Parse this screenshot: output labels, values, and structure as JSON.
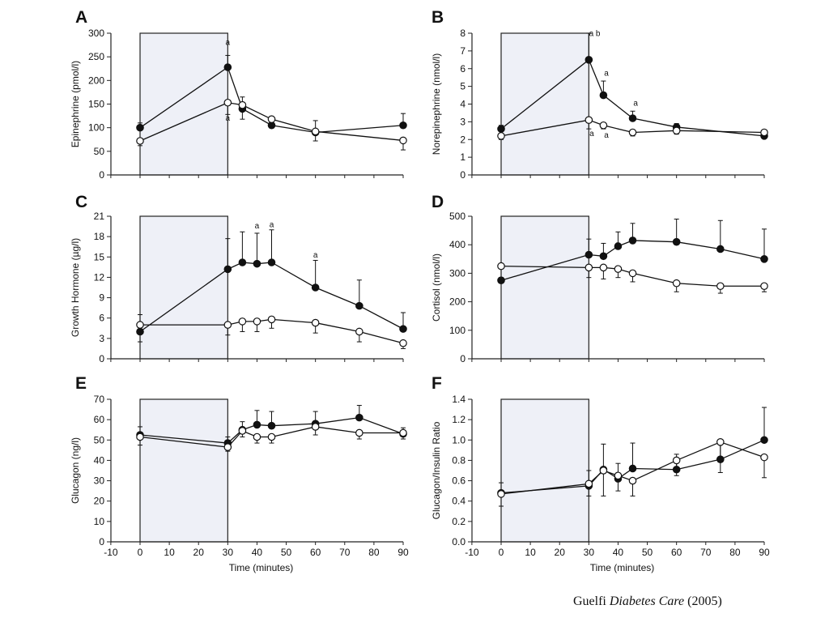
{
  "citation": {
    "author": "Guelfi",
    "journal": "Diabetes Care",
    "year": "(2005)"
  },
  "colors": {
    "shade": "#eef0f7",
    "ink": "#111111",
    "open_fill": "#ffffff"
  },
  "chart_data": [
    {
      "letter": "A",
      "type": "line",
      "title": "",
      "ylabel": "Epinephrine (pmol/l)",
      "xlabel": "",
      "ylim": [
        0,
        300
      ],
      "yticks": [
        0,
        50,
        100,
        150,
        200,
        250,
        300
      ],
      "xlim": [
        0,
        90
      ],
      "xticks": [],
      "shaded_interval": [
        0,
        30
      ],
      "series": [
        {
          "marker": "filled",
          "x": [
            0,
            30,
            35,
            45,
            60,
            90
          ],
          "y": [
            100,
            228,
            140,
            105,
            90,
            105
          ],
          "err": [
            10,
            25,
            25,
            10,
            25,
            25
          ]
        },
        {
          "marker": "open",
          "x": [
            0,
            30,
            35,
            45,
            60,
            90
          ],
          "y": [
            72,
            153,
            148,
            118,
            92,
            73
          ],
          "err": [
            10,
            25,
            30,
            15,
            20,
            20
          ]
        }
      ],
      "annotations": [
        {
          "text": "a",
          "x": 30,
          "y": 275
        },
        {
          "text": "a",
          "x": 30,
          "y": 115
        }
      ]
    },
    {
      "letter": "B",
      "type": "line",
      "title": "",
      "ylabel": "Norepinephrine (nmol/l)",
      "xlabel": "",
      "ylim": [
        0,
        8
      ],
      "yticks": [
        0,
        1,
        2,
        3,
        4,
        5,
        6,
        7,
        8
      ],
      "xlim": [
        0,
        90
      ],
      "xticks": [],
      "shaded_interval": [
        0,
        30
      ],
      "series": [
        {
          "marker": "filled",
          "x": [
            0,
            30,
            35,
            45,
            60,
            90
          ],
          "y": [
            2.6,
            6.5,
            4.5,
            3.2,
            2.7,
            2.2
          ],
          "err": [
            0.2,
            1.5,
            0.8,
            0.4,
            0.2,
            0.2
          ]
        },
        {
          "marker": "open",
          "x": [
            0,
            30,
            35,
            45,
            60,
            90
          ],
          "y": [
            2.2,
            3.1,
            2.8,
            2.4,
            2.5,
            2.4
          ],
          "err": [
            0.2,
            0.5,
            0.2,
            0.2,
            0.2,
            0.2
          ]
        }
      ],
      "annotations": [
        {
          "text": "a b",
          "x": 32,
          "y": 7.85
        },
        {
          "text": "a",
          "x": 36,
          "y": 5.6
        },
        {
          "text": "a",
          "x": 46,
          "y": 3.9
        },
        {
          "text": "a",
          "x": 31,
          "y": 2.2
        },
        {
          "text": "a",
          "x": 36,
          "y": 2.1
        }
      ]
    },
    {
      "letter": "C",
      "type": "line",
      "title": "",
      "ylabel": "Growth Hormone (µg/l)",
      "xlabel": "",
      "ylim": [
        0,
        21
      ],
      "yticks": [
        0,
        3,
        6,
        9,
        12,
        15,
        18,
        21
      ],
      "xlim": [
        0,
        90
      ],
      "xticks": [],
      "shaded_interval": [
        0,
        30
      ],
      "series": [
        {
          "marker": "filled",
          "x": [
            0,
            30,
            35,
            40,
            45,
            60,
            75,
            90
          ],
          "y": [
            4.0,
            13.2,
            14.2,
            14.0,
            14.2,
            10.5,
            7.8,
            4.4
          ],
          "err": [
            2.5,
            4.5,
            4.5,
            4.5,
            4.8,
            4.0,
            3.8,
            2.4
          ]
        },
        {
          "marker": "open",
          "x": [
            0,
            30,
            35,
            40,
            45,
            60,
            75,
            90
          ],
          "y": [
            5.0,
            5.0,
            5.5,
            5.5,
            5.8,
            5.3,
            4.0,
            2.3
          ],
          "err": [
            2.5,
            1.5,
            1.5,
            1.5,
            1.3,
            1.5,
            1.5,
            0.8
          ]
        }
      ],
      "annotations": [
        {
          "text": "a",
          "x": 40,
          "y": 19.2
        },
        {
          "text": "a",
          "x": 45,
          "y": 19.4
        },
        {
          "text": "a",
          "x": 60,
          "y": 14.9
        }
      ]
    },
    {
      "letter": "D",
      "type": "line",
      "title": "",
      "ylabel": "Cortisol (nmol/l)",
      "xlabel": "",
      "ylim": [
        0,
        500
      ],
      "yticks": [
        0,
        100,
        200,
        300,
        400,
        500
      ],
      "xlim": [
        0,
        90
      ],
      "xticks": [],
      "shaded_interval": [
        0,
        30
      ],
      "series": [
        {
          "marker": "filled",
          "x": [
            0,
            30,
            35,
            40,
            45,
            60,
            75,
            90
          ],
          "y": [
            275,
            365,
            360,
            395,
            415,
            410,
            385,
            350
          ],
          "err": [
            50,
            55,
            45,
            50,
            60,
            80,
            100,
            105
          ]
        },
        {
          "marker": "open",
          "x": [
            0,
            30,
            35,
            40,
            45,
            60,
            75,
            90
          ],
          "y": [
            325,
            320,
            320,
            315,
            300,
            265,
            255,
            255
          ],
          "err": [
            40,
            35,
            40,
            30,
            30,
            30,
            25,
            20
          ]
        }
      ],
      "annotations": []
    },
    {
      "letter": "E",
      "type": "line",
      "title": "",
      "ylabel": "Glucagon (ng/l)",
      "xlabel": "Time (minutes)",
      "ylim": [
        0,
        70
      ],
      "yticks": [
        0,
        10,
        20,
        30,
        40,
        50,
        60,
        70
      ],
      "xlim": [
        -10,
        90
      ],
      "xticks": [
        -10,
        0,
        10,
        20,
        30,
        40,
        50,
        60,
        70,
        80,
        90
      ],
      "shaded_interval": [
        0,
        30
      ],
      "series": [
        {
          "marker": "filled",
          "x": [
            0,
            30,
            35,
            40,
            45,
            60,
            75,
            90
          ],
          "y": [
            52.5,
            48.5,
            55,
            57.5,
            57,
            58,
            61,
            53
          ],
          "err": [
            4,
            3,
            4,
            7,
            7,
            6,
            6,
            3
          ]
        },
        {
          "marker": "open",
          "x": [
            0,
            30,
            35,
            40,
            45,
            60,
            75,
            90
          ],
          "y": [
            51.5,
            46.5,
            54.5,
            51.5,
            51.5,
            56.5,
            53.5,
            53.5
          ],
          "err": [
            4,
            2,
            3,
            3,
            3,
            4,
            3,
            3
          ]
        }
      ],
      "annotations": []
    },
    {
      "letter": "F",
      "type": "line",
      "title": "",
      "ylabel": "Glucagon/Insulin Ratio",
      "xlabel": "Time (minutes)",
      "ylim": [
        0,
        1.4
      ],
      "yticks": [
        "0.0",
        "0.2",
        "0.4",
        "0.6",
        "0.8",
        "1.0",
        "1.2",
        "1.4"
      ],
      "xlim": [
        -10,
        90
      ],
      "xticks": [
        -10,
        0,
        10,
        20,
        30,
        40,
        50,
        60,
        70,
        80,
        90
      ],
      "shaded_interval": [
        0,
        30
      ],
      "series": [
        {
          "marker": "filled",
          "x": [
            0,
            30,
            35,
            40,
            45,
            60,
            75,
            90
          ],
          "y": [
            0.48,
            0.55,
            0.71,
            0.62,
            0.72,
            0.71,
            0.81,
            1.0
          ],
          "err": [
            0.1,
            0.15,
            0.25,
            0.15,
            0.25,
            0.15,
            0.15,
            0.32
          ]
        },
        {
          "marker": "open",
          "x": [
            0,
            30,
            35,
            40,
            45,
            60,
            75,
            90
          ],
          "y": [
            0.47,
            0.57,
            0.7,
            0.65,
            0.6,
            0.8,
            0.98,
            0.83
          ],
          "err": [
            0.12,
            0.12,
            0.25,
            0.15,
            0.15,
            0.15,
            0.3,
            0.2
          ]
        }
      ],
      "annotations": []
    }
  ]
}
